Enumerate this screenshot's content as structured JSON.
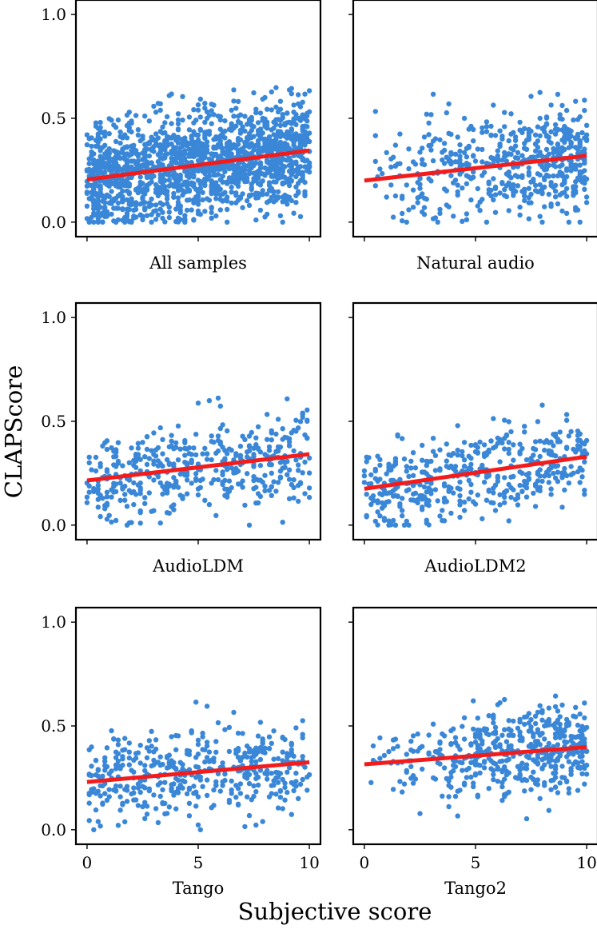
{
  "chart_data": {
    "type": "scatter",
    "ylabel": "CLAPScore",
    "xlabel": "Subjective score",
    "xlim": [
      -0.5,
      10.5
    ],
    "ylim": [
      -0.07,
      1.07
    ],
    "xticks": [
      0,
      5,
      10
    ],
    "yticks": [
      0.0,
      0.5,
      1.0
    ],
    "ytick_labels": [
      "0.0",
      "0.5",
      "1.0"
    ],
    "xtick_labels": [
      "0",
      "5",
      "10"
    ],
    "point_color": "#3a87d8",
    "line_color": "#f21c1c",
    "grid": false,
    "panels": [
      {
        "title": "All samples",
        "n_points": 1600,
        "trend": [
          0.205,
          0.345
        ],
        "y_mean_low": 0.2,
        "y_mean_high": 0.35,
        "spread": 0.13,
        "x_distribution": "uniform"
      },
      {
        "title": "Natural audio",
        "n_points": 520,
        "trend": [
          0.2,
          0.32
        ],
        "y_mean_low": 0.2,
        "y_mean_high": 0.32,
        "spread": 0.13,
        "x_distribution": "right-skewed"
      },
      {
        "title": "AudioLDM",
        "n_points": 440,
        "trend": [
          0.215,
          0.342
        ],
        "y_mean_low": 0.21,
        "y_mean_high": 0.34,
        "spread": 0.11,
        "x_distribution": "uniform"
      },
      {
        "title": "AudioLDM2",
        "n_points": 440,
        "trend": [
          0.175,
          0.33
        ],
        "y_mean_low": 0.17,
        "y_mean_high": 0.33,
        "spread": 0.11,
        "x_distribution": "uniform"
      },
      {
        "title": "Tango",
        "n_points": 440,
        "trend": [
          0.23,
          0.325
        ],
        "y_mean_low": 0.23,
        "y_mean_high": 0.32,
        "spread": 0.11,
        "x_distribution": "uniform"
      },
      {
        "title": "Tango2",
        "n_points": 480,
        "trend": [
          0.315,
          0.398
        ],
        "y_mean_low": 0.31,
        "y_mean_high": 0.4,
        "spread": 0.1,
        "x_distribution": "right-skewed"
      }
    ]
  }
}
